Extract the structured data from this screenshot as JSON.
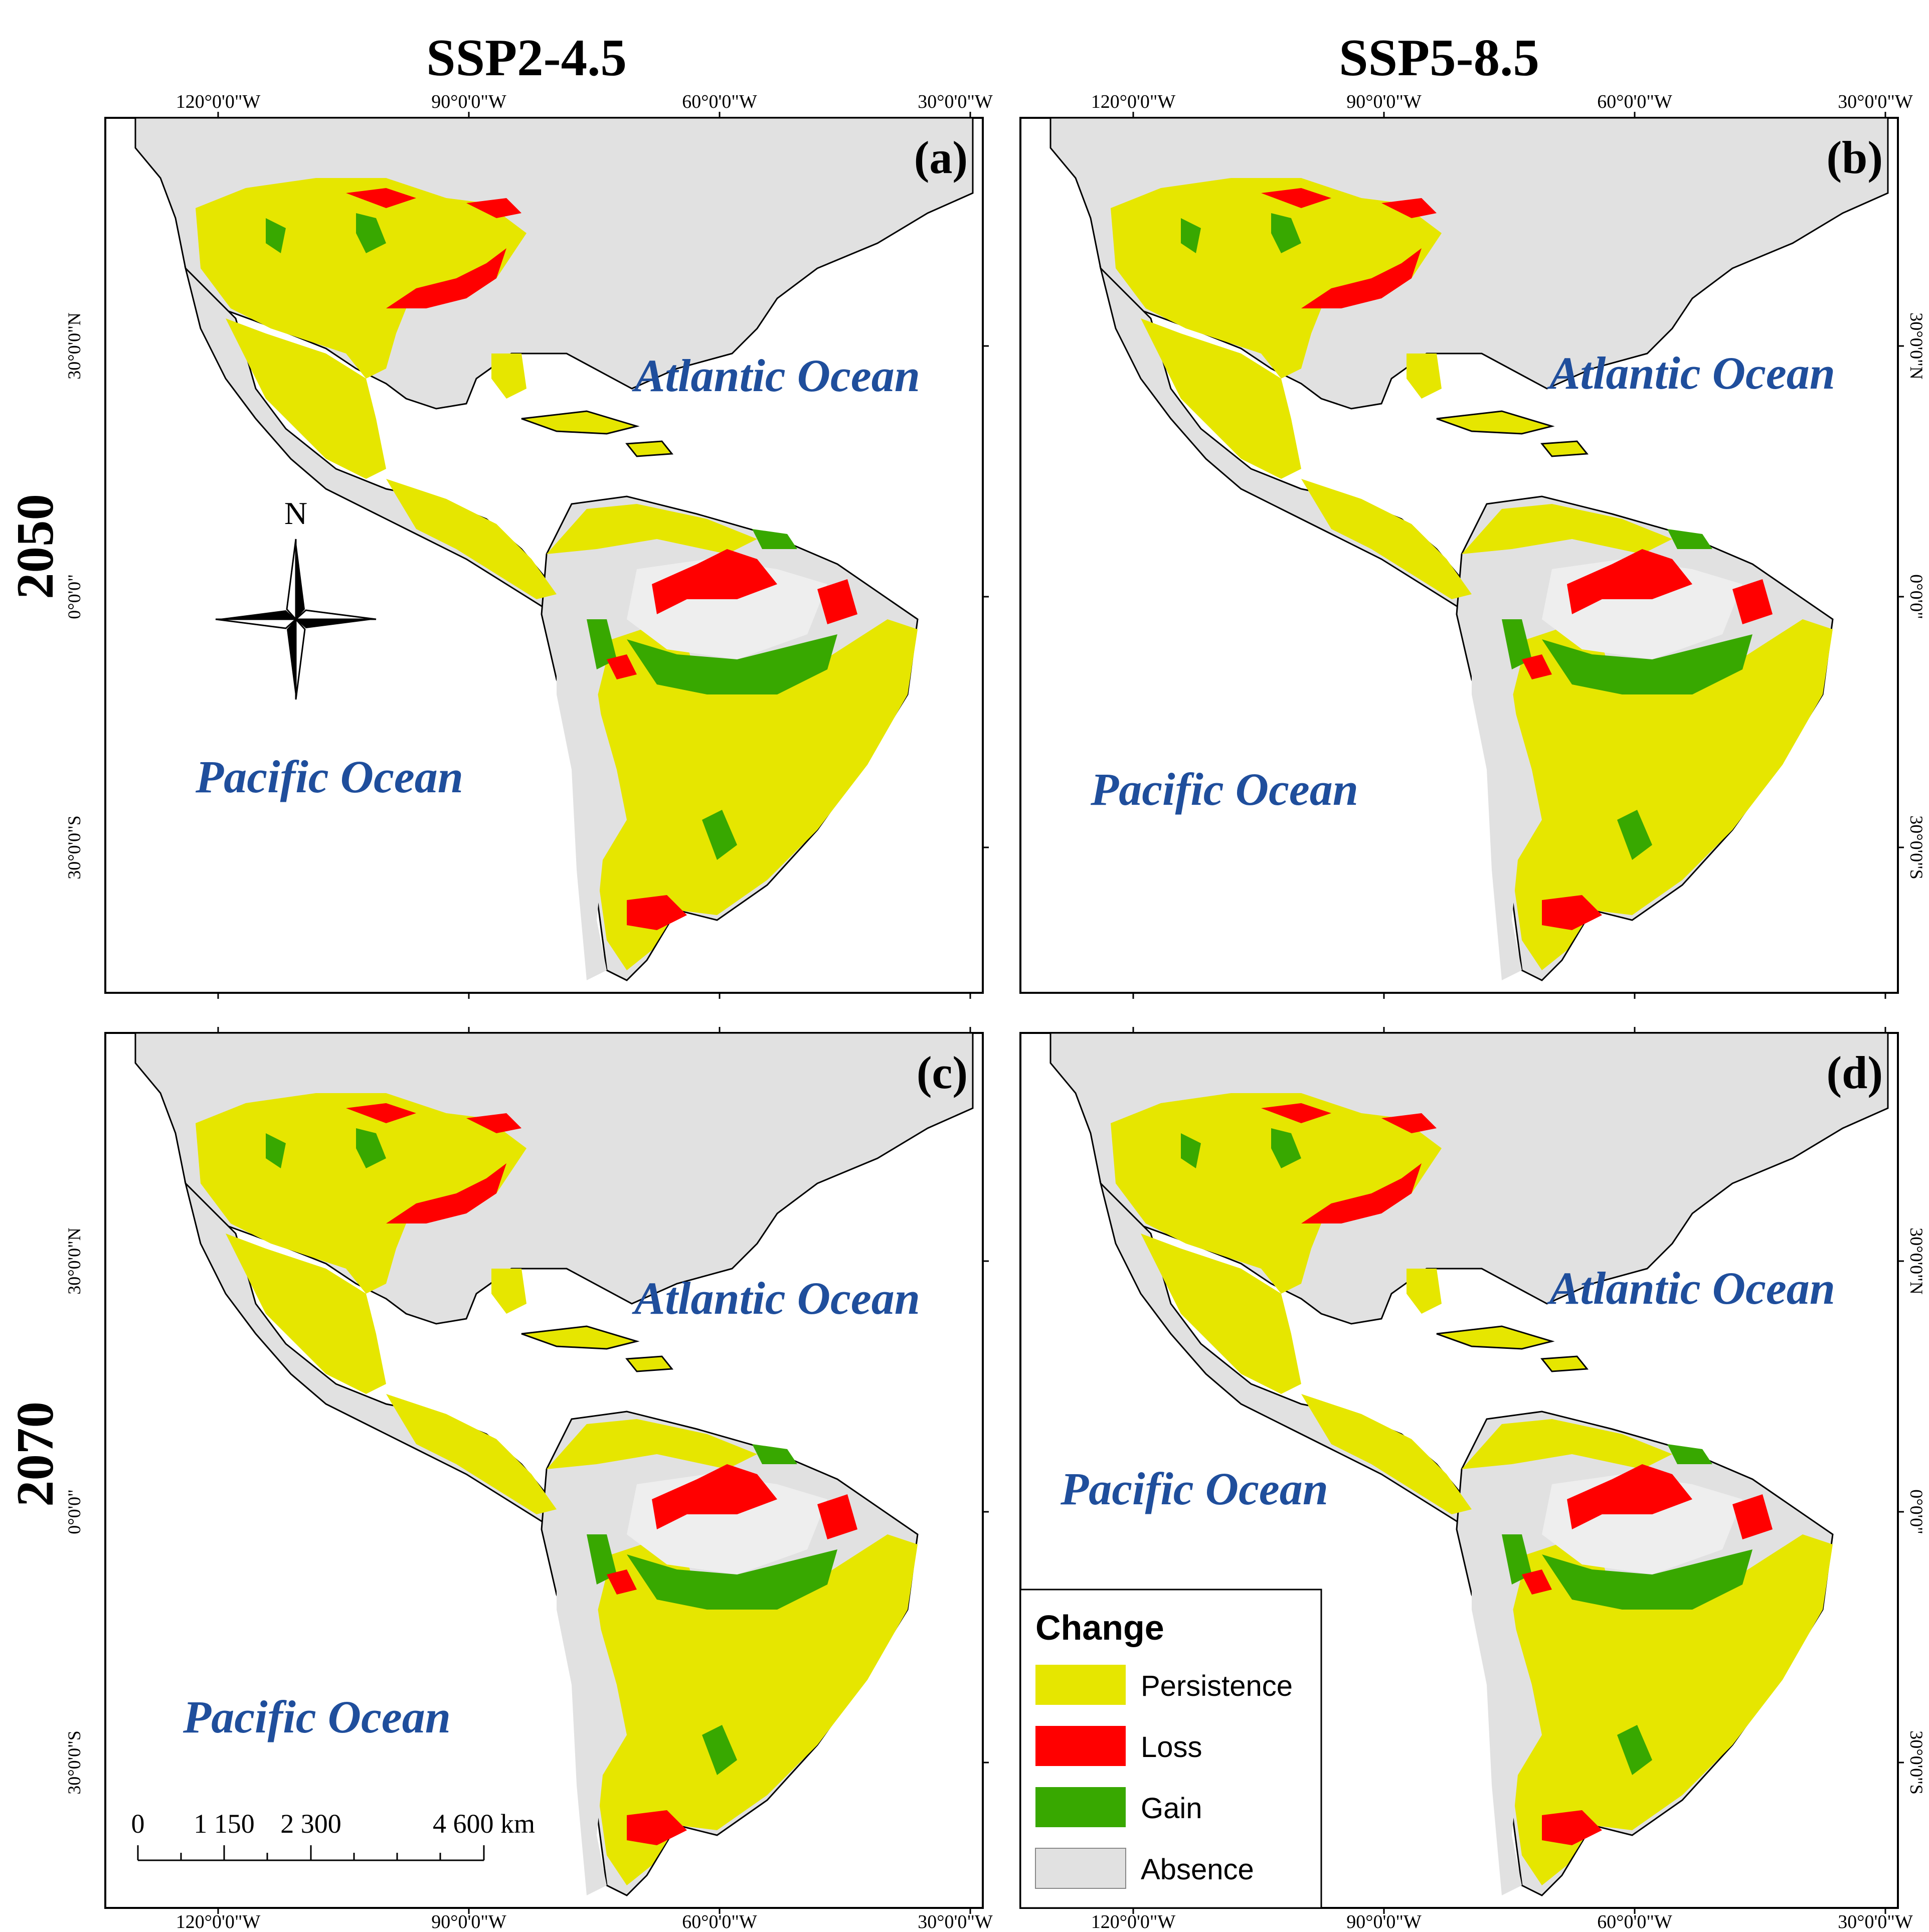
{
  "columns": [
    "SSP2-4.5",
    "SSP5-8.5"
  ],
  "rows": [
    "2050",
    "2070"
  ],
  "colors": {
    "persistence": "#e6e600",
    "loss": "#ff0000",
    "gain": "#38a800",
    "absence": "#e1e1e1",
    "ocean_label": "#1f4e9c",
    "border": "#000000"
  },
  "ticks": {
    "lon": [
      "120°0'0\"W",
      "90°0'0\"W",
      "60°0'0\"W",
      "30°0'0\"W"
    ],
    "lat": [
      "30°0'0\"N",
      "0°0'0\"",
      "30°0'0\"S"
    ]
  },
  "panels": [
    {
      "id": "a",
      "label": "(a)",
      "ocean_atlantic": "Atlantic Ocean",
      "ocean_pacific": "Pacific Ocean"
    },
    {
      "id": "b",
      "label": "(b)",
      "ocean_atlantic": "Atlantic Ocean",
      "ocean_pacific": "Pacific Ocean"
    },
    {
      "id": "c",
      "label": "(c)",
      "ocean_atlantic": "Atlantic Ocean",
      "ocean_pacific": "Pacific Ocean"
    },
    {
      "id": "d",
      "label": "(d)",
      "ocean_atlantic": "Atlantic Ocean",
      "ocean_pacific": "Pacific Ocean"
    }
  ],
  "north_arrow": {
    "label": "N"
  },
  "scale_bar": {
    "labels": [
      "0",
      "1 150",
      "2 300",
      "4 600 km"
    ]
  },
  "legend": {
    "title": "Change",
    "items": [
      {
        "label": "Persistence",
        "color": "#e6e600"
      },
      {
        "label": "Loss",
        "color": "#ff0000"
      },
      {
        "label": "Gain",
        "color": "#38a800"
      },
      {
        "label": "Absence",
        "color": "#e1e1e1"
      }
    ]
  }
}
